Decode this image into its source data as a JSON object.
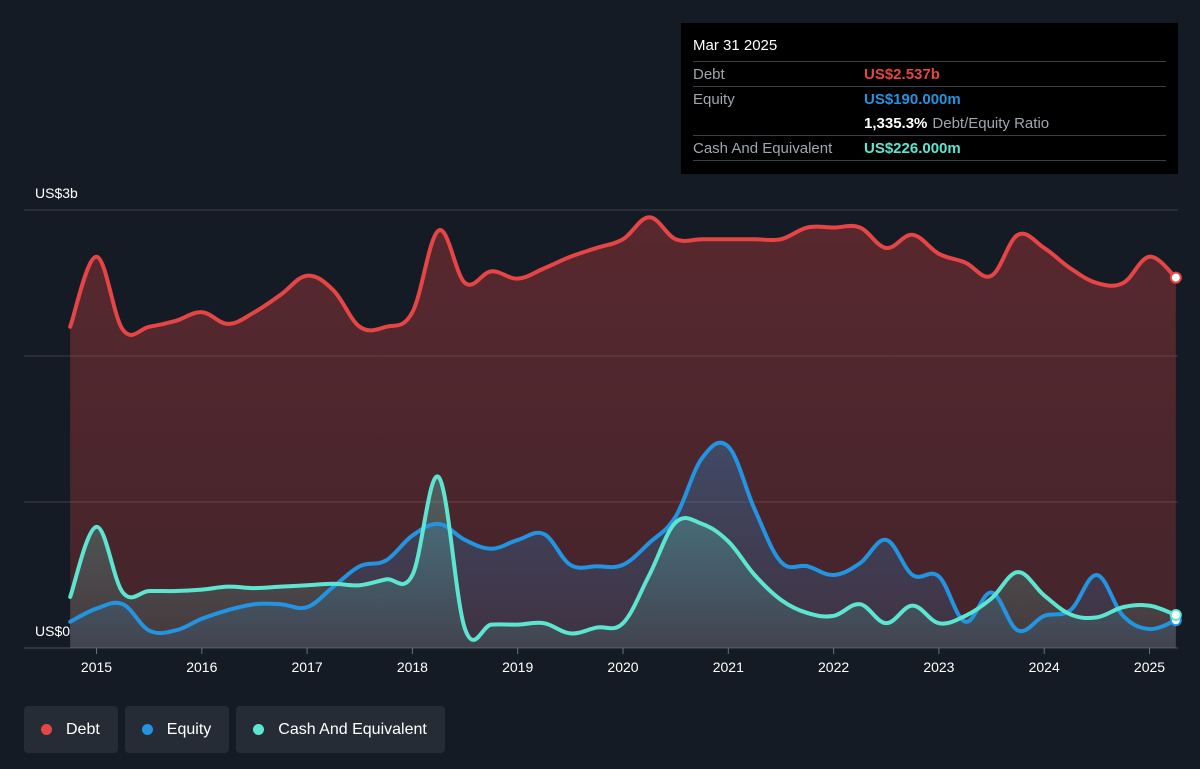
{
  "tooltip": {
    "date": "Mar 31 2025",
    "debt_label": "Debt",
    "debt_value": "US$2.537b",
    "equity_label": "Equity",
    "equity_value": "US$190.000m",
    "ratio_value": "1,335.3%",
    "ratio_label": "Debt/Equity Ratio",
    "cash_label": "Cash And Equivalent",
    "cash_value": "US$226.000m"
  },
  "legend": {
    "debt": "Debt",
    "equity": "Equity",
    "cash": "Cash And Equivalent"
  },
  "colors": {
    "background": "#151b24",
    "debt": "#e64545",
    "equity": "#2394df",
    "cash": "#5ce6d2",
    "grid": "#3a3f47"
  },
  "chart_data": {
    "type": "area",
    "ylabel_top": "US$3b",
    "ylabel_bottom": "US$0",
    "ylim": [
      0,
      3
    ],
    "y_unit": "US$ billions",
    "xlim": [
      2014.75,
      2025.25
    ],
    "x_ticks": [
      "2015",
      "2016",
      "2017",
      "2018",
      "2019",
      "2020",
      "2021",
      "2022",
      "2023",
      "2024",
      "2025"
    ],
    "grid": true,
    "legend_position": "bottom-left",
    "series": [
      {
        "name": "Debt",
        "x": [
          2014.75,
          2015.0,
          2015.25,
          2015.5,
          2015.75,
          2016.0,
          2016.25,
          2016.5,
          2016.75,
          2017.0,
          2017.25,
          2017.5,
          2017.75,
          2018.0,
          2018.25,
          2018.5,
          2018.75,
          2019.0,
          2019.25,
          2019.5,
          2019.75,
          2020.0,
          2020.25,
          2020.5,
          2020.75,
          2021.0,
          2021.25,
          2021.5,
          2021.75,
          2022.0,
          2022.25,
          2022.5,
          2022.75,
          2023.0,
          2023.25,
          2023.5,
          2023.75,
          2024.0,
          2024.25,
          2024.5,
          2024.75,
          2025.0,
          2025.25
        ],
        "values": [
          2.2,
          2.68,
          2.18,
          2.2,
          2.24,
          2.3,
          2.22,
          2.3,
          2.42,
          2.55,
          2.45,
          2.2,
          2.2,
          2.3,
          2.86,
          2.5,
          2.58,
          2.53,
          2.6,
          2.68,
          2.74,
          2.8,
          2.95,
          2.8,
          2.8,
          2.8,
          2.8,
          2.8,
          2.88,
          2.88,
          2.88,
          2.74,
          2.83,
          2.7,
          2.64,
          2.55,
          2.83,
          2.74,
          2.6,
          2.5,
          2.5,
          2.68,
          2.537
        ]
      },
      {
        "name": "Equity",
        "x": [
          2014.75,
          2015.0,
          2015.25,
          2015.5,
          2015.75,
          2016.0,
          2016.25,
          2016.5,
          2016.75,
          2017.0,
          2017.25,
          2017.5,
          2017.75,
          2018.0,
          2018.25,
          2018.5,
          2018.75,
          2019.0,
          2019.25,
          2019.5,
          2019.75,
          2020.0,
          2020.25,
          2020.5,
          2020.75,
          2021.0,
          2021.25,
          2021.5,
          2021.75,
          2022.0,
          2022.25,
          2022.5,
          2022.75,
          2023.0,
          2023.25,
          2023.5,
          2023.75,
          2024.0,
          2024.25,
          2024.5,
          2024.75,
          2025.0,
          2025.25
        ],
        "values": [
          0.18,
          0.27,
          0.3,
          0.12,
          0.12,
          0.2,
          0.26,
          0.3,
          0.3,
          0.28,
          0.42,
          0.56,
          0.6,
          0.77,
          0.85,
          0.74,
          0.68,
          0.74,
          0.78,
          0.57,
          0.56,
          0.57,
          0.72,
          0.9,
          1.3,
          1.38,
          0.95,
          0.59,
          0.56,
          0.5,
          0.58,
          0.74,
          0.5,
          0.49,
          0.18,
          0.38,
          0.12,
          0.22,
          0.26,
          0.5,
          0.22,
          0.13,
          0.19
        ]
      },
      {
        "name": "Cash And Equivalent",
        "x": [
          2014.75,
          2015.0,
          2015.25,
          2015.5,
          2015.75,
          2016.0,
          2016.25,
          2016.5,
          2016.75,
          2017.0,
          2017.25,
          2017.5,
          2017.75,
          2018.0,
          2018.25,
          2018.5,
          2018.75,
          2019.0,
          2019.25,
          2019.5,
          2019.75,
          2020.0,
          2020.25,
          2020.5,
          2020.75,
          2021.0,
          2021.25,
          2021.5,
          2021.75,
          2022.0,
          2022.25,
          2022.5,
          2022.75,
          2023.0,
          2023.25,
          2023.5,
          2023.75,
          2024.0,
          2024.25,
          2024.5,
          2024.75,
          2025.0,
          2025.25
        ],
        "values": [
          0.35,
          0.83,
          0.38,
          0.39,
          0.39,
          0.4,
          0.42,
          0.41,
          0.42,
          0.43,
          0.44,
          0.43,
          0.47,
          0.5,
          1.17,
          0.13,
          0.16,
          0.16,
          0.17,
          0.1,
          0.14,
          0.17,
          0.5,
          0.86,
          0.85,
          0.73,
          0.5,
          0.33,
          0.24,
          0.22,
          0.3,
          0.17,
          0.29,
          0.17,
          0.22,
          0.34,
          0.52,
          0.36,
          0.23,
          0.21,
          0.28,
          0.29,
          0.226
        ]
      }
    ]
  }
}
